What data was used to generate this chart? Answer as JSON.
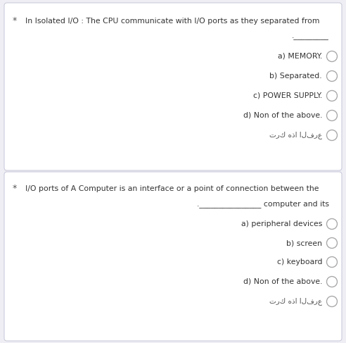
{
  "bg_color": "#eeeef4",
  "card_color": "#ffffff",
  "border_color": "#ccccdd",
  "text_color": "#333333",
  "arabic_color": "#555555",
  "bullet_color": "#555555",
  "q1": {
    "question_line1": "In Isolated I/O : The CPU communicate with I/O ports as they separated from",
    "question_line2": "._________",
    "options": [
      "a) MEMORY.",
      "b) Separated.",
      "c) POWER SUPPLY.",
      "d) Non of the above.",
      "ترك هذا الفرع"
    ]
  },
  "q2": {
    "question_line1": "I/O ports of A Computer is an interface or a point of connection between the",
    "question_line2": ".________________ computer and its",
    "options": [
      "a) peripheral devices",
      "b) screen",
      "c) keyboard",
      "d) Non of the above.",
      "ترك هذا الفرع"
    ]
  },
  "font_size_question": 7.8,
  "font_size_option": 7.8,
  "font_size_arabic": 7.5,
  "font_size_bullet": 9
}
